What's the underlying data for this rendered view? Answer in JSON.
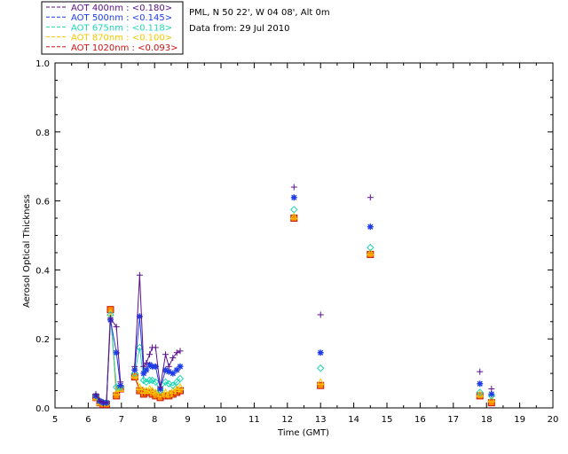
{
  "header": {
    "station": "PML, N 50 22', W 04 08', Alt 0m",
    "date_line": "Data from: 29 Jul 2010"
  },
  "chart_data": {
    "type": "line",
    "xlabel": "Time (GMT)",
    "ylabel": "Aerosol Optical Thickness",
    "xlim": [
      5,
      20
    ],
    "ylim": [
      0,
      1.0
    ],
    "x_ticks": [
      "5",
      "6",
      "7",
      "8",
      "9",
      "10",
      "11",
      "12",
      "13",
      "14",
      "15",
      "16",
      "17",
      "18",
      "19",
      "20"
    ],
    "y_ticks": [
      "0.0",
      "0.2",
      "0.4",
      "0.6",
      "0.8",
      "1.0"
    ],
    "legend_position": "top-left",
    "series": [
      {
        "name": "AOT  400nm : <0.180>",
        "color": "#5a0f8c",
        "marker": "plus",
        "x": [
          6.23,
          6.35,
          6.45,
          6.55,
          6.67,
          6.85,
          6.97,
          7.4,
          7.55,
          7.67,
          7.75,
          7.85,
          7.93,
          8.03,
          8.17,
          8.33,
          8.43,
          8.55,
          8.67,
          8.77,
          12.2,
          13.0,
          14.5,
          17.8,
          18.15
        ],
        "y": [
          0.04,
          0.02,
          0.015,
          0.015,
          0.26,
          0.235,
          0.075,
          0.12,
          0.385,
          0.12,
          0.13,
          0.155,
          0.175,
          0.175,
          0.06,
          0.155,
          0.12,
          0.145,
          0.16,
          0.165,
          0.64,
          0.27,
          0.61,
          0.105,
          0.055
        ]
      },
      {
        "name": "AOT  500nm : <0.145>",
        "color": "#1e3ce6",
        "marker": "asterisk",
        "x": [
          6.23,
          6.35,
          6.45,
          6.55,
          6.67,
          6.85,
          6.97,
          7.4,
          7.55,
          7.67,
          7.75,
          7.85,
          7.93,
          8.03,
          8.17,
          8.33,
          8.43,
          8.55,
          8.67,
          8.77,
          12.2,
          13.0,
          14.5,
          17.8,
          18.15
        ],
        "y": [
          0.035,
          0.02,
          0.015,
          0.015,
          0.255,
          0.16,
          0.065,
          0.11,
          0.265,
          0.1,
          0.11,
          0.125,
          0.12,
          0.12,
          0.055,
          0.11,
          0.105,
          0.1,
          0.11,
          0.12,
          0.61,
          0.16,
          0.525,
          0.07,
          0.04
        ]
      },
      {
        "name": "AOT  675nm : <0.118>",
        "color": "#1ed6b4",
        "marker": "diamond",
        "x": [
          6.23,
          6.35,
          6.45,
          6.55,
          6.67,
          6.85,
          6.97,
          7.4,
          7.55,
          7.67,
          7.75,
          7.85,
          7.93,
          8.03,
          8.17,
          8.33,
          8.43,
          8.55,
          8.67,
          8.77,
          12.2,
          13.0,
          14.5,
          17.8,
          18.15
        ],
        "y": [
          0.035,
          0.02,
          0.015,
          0.015,
          0.27,
          0.06,
          0.06,
          0.1,
          0.175,
          0.08,
          0.075,
          0.08,
          0.08,
          0.075,
          0.05,
          0.075,
          0.07,
          0.065,
          0.075,
          0.085,
          0.575,
          0.115,
          0.465,
          0.045,
          0.035
        ]
      },
      {
        "name": "AOT  870nm : <0.100>",
        "color": "#f5c800",
        "marker": "triangle",
        "x": [
          6.23,
          6.35,
          6.45,
          6.55,
          6.67,
          6.85,
          6.97,
          7.4,
          7.55,
          7.67,
          7.75,
          7.85,
          7.93,
          8.03,
          8.17,
          8.33,
          8.43,
          8.55,
          8.67,
          8.77,
          12.2,
          13.0,
          14.5,
          17.8,
          18.15
        ],
        "y": [
          0.03,
          0.015,
          0.015,
          0.015,
          0.275,
          0.045,
          0.055,
          0.095,
          0.06,
          0.05,
          0.05,
          0.055,
          0.05,
          0.045,
          0.04,
          0.045,
          0.04,
          0.05,
          0.055,
          0.06,
          0.555,
          0.075,
          0.45,
          0.04,
          0.025
        ]
      },
      {
        "name": "AOT 1020nm : <0.093>",
        "color": "#c81414",
        "marker": "square",
        "x": [
          6.23,
          6.35,
          6.45,
          6.55,
          6.67,
          6.85,
          6.97,
          7.4,
          7.55,
          7.67,
          7.75,
          7.85,
          7.93,
          8.03,
          8.17,
          8.33,
          8.43,
          8.55,
          8.67,
          8.77,
          12.2,
          13.0,
          14.5,
          17.8,
          18.15
        ],
        "y": [
          0.03,
          0.015,
          0.01,
          0.01,
          0.285,
          0.035,
          0.055,
          0.09,
          0.05,
          0.04,
          0.045,
          0.045,
          0.04,
          0.035,
          0.03,
          0.035,
          0.035,
          0.04,
          0.045,
          0.05,
          0.55,
          0.065,
          0.445,
          0.035,
          0.015
        ]
      }
    ]
  }
}
